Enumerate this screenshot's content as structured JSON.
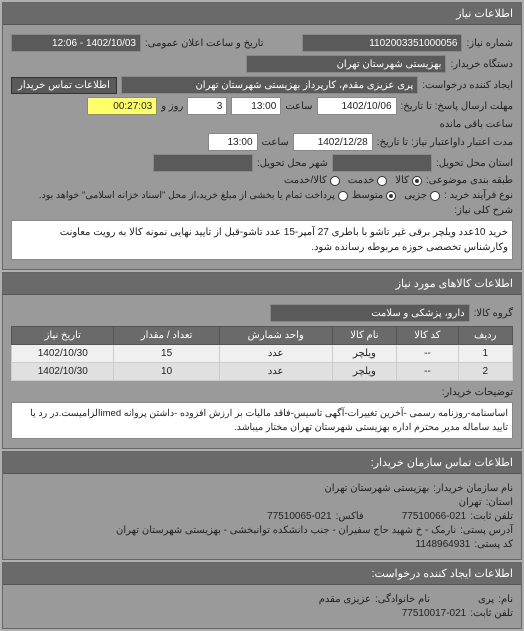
{
  "panel1": {
    "title": "اطلاعات نیاز",
    "request_number_label": "شماره نیاز:",
    "request_number": "1102003351000056",
    "public_date_label": "تاریخ و ساعت اعلان عمومی:",
    "public_date": "1402/10/03 - 12:06",
    "buyer_org_label": "دستگاه خریدار:",
    "buyer_org": "بهزیستی شهرستان تهران",
    "requester_label": "ایجاد کننده درخواست:",
    "requester": "پری عزیزی مقدم، کارپرداز بهزیستی شهرستان تهران",
    "contact_btn": "اطلاعات تماس خریدار",
    "deadline_label": "مهلت ارسال پاسخ: تا تاریخ:",
    "deadline_date": "1402/10/06",
    "deadline_time_label": "ساعت",
    "deadline_time": "13:00",
    "days_left": "3",
    "days_label": "روز و",
    "time_left": "00:27:03",
    "time_left_label": "ساعت باقی مانده",
    "validity_label": "مدت اعتبار داواعتبار نیاز: تا تاریخ:",
    "validity_date": "1402/12/28",
    "validity_time_label": "ساعت",
    "validity_time": "13:00",
    "delivery_state_label": "استان محل تحویل:",
    "delivery_city_label": "شهر محل تحویل:",
    "budget_row_label": "طبقه بندی موضوعی:",
    "radio_goods": "کالا",
    "radio_service": "خدمت",
    "radio_goods_service": "کالا/خدمت",
    "purchase_type_label": "نوع فرآیند خرید :",
    "radio_small": "جزیی",
    "radio_medium": "متوسط",
    "payment_note": "پرداخت تمام یا بخشی از مبلغ خرید،از محل \"اسناد خزانه اسلامی\" خواهد بود.",
    "desc_label": "شرح کلی نیاز:",
    "desc_text": "خرید 10عدد ویلچر برقی غیر تاشو با باطری 27 آمپر-15 عدد تاشو-قبل از تایید نهایی نمونه کالا به رویت معاونت وکارشناس تخصصی حوزه مربوطه رسانده شود."
  },
  "panel2": {
    "title": "اطلاعات کالاهای مورد نیاز",
    "goods_group_label": "گروه کالا:",
    "goods_group": "دارو، پزشکی و سلامت",
    "table": {
      "headers": [
        "ردیف",
        "کد کالا",
        "نام کالا",
        "واحد شمارش",
        "تعداد / مقدار",
        "تاریخ نیاز"
      ],
      "rows": [
        [
          "1",
          "--",
          "ویلچر",
          "عدد",
          "15",
          "1402/10/30"
        ],
        [
          "2",
          "--",
          "ویلچر",
          "عدد",
          "10",
          "1402/10/30"
        ]
      ]
    },
    "buyer_notes_label": "توضیحات خریدار:",
    "buyer_notes": "اساسنامه-روزنامه رسمی -آخرین تغییرات-آگهی تاسیس-فاقد مالیات بر ارزش افزوده -داشتن پروانه imedالزامیست.در رد یا تایید ساماله مدیر محترم اداره بهزیستی شهرستان تهران مختار میباشد."
  },
  "panel3": {
    "title": "اطلاعات تماس سازمان خریدار:",
    "org_name_label": "نام سازمان خریدار:",
    "org_name": "بهزیستی شهرستان تهران",
    "province_label": "استان:",
    "province": "تهران",
    "phone_label": "تلفن ثابت:",
    "phone": "77510066-021",
    "fax_label": "فاکس:",
    "fax": "77510065-021",
    "postal_label": "آدرس پستی:",
    "postal": "نارمک - خ شهید حاج سفیران - جنب دانشکده توانبخشی - بهزیستی شهرستان تهران",
    "postcode_label": "کد پستی:",
    "postcode": "1148964931"
  },
  "panel4": {
    "title": "اطلاعات ایجاد کننده درخواست:",
    "name_label": "نام:",
    "name": "پری",
    "family_label": "نام خانوادگی:",
    "family": "عزیزی مقدم",
    "tel_label": "تلفن ثابت:",
    "tel": "77510017-021"
  },
  "colors": {
    "panel_bg": "#9a9a9a",
    "header_bg": "#6a6a6a",
    "field_dark": "#5a5a5a",
    "highlight_yellow": "#ffff66"
  }
}
